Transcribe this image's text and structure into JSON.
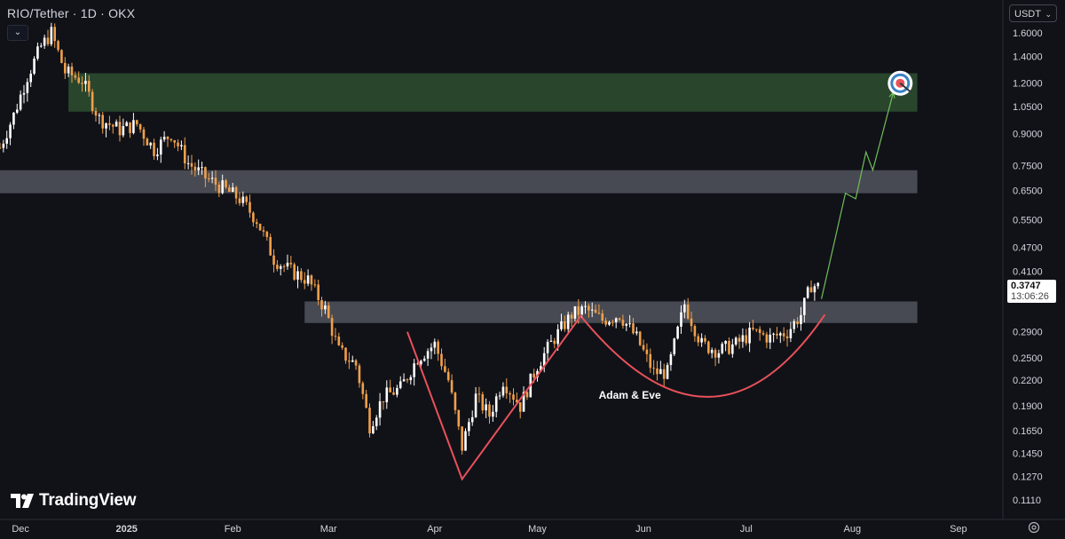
{
  "header": {
    "title": "RIO/Tether · 1D · OKX",
    "collapse_icon": "chevron-down-icon"
  },
  "currency": {
    "label": "USDT"
  },
  "last_price": {
    "price": "0.3747",
    "countdown": "13:06:26"
  },
  "branding": {
    "name": "TradingView"
  },
  "colors": {
    "background": "#111218",
    "up": "#ffffff",
    "down": "#f0a04b",
    "zone_green": "#2b4a2e",
    "zone_gray": "#5a5d66",
    "pattern_line": "#e8515a",
    "projection": "#6fbf5a"
  },
  "chart_data": {
    "type": "candlestick",
    "y_scale": "log",
    "y_ticks": [
      "1.6000",
      "1.4000",
      "1.2000",
      "1.0500",
      "0.9000",
      "0.7500",
      "0.6500",
      "0.5500",
      "0.4700",
      "0.4100",
      "0.2900",
      "0.2500",
      "0.2200",
      "0.1900",
      "0.1650",
      "0.1450",
      "0.1270",
      "0.1110"
    ],
    "x_ticks": [
      {
        "label": "Dec",
        "date": "2024-12-01"
      },
      {
        "label": "2025",
        "date": "2025-01-01"
      },
      {
        "label": "Feb",
        "date": "2025-02-01"
      },
      {
        "label": "Mar",
        "date": "2025-03-01"
      },
      {
        "label": "Apr",
        "date": "2025-04-01"
      },
      {
        "label": "May",
        "date": "2025-05-01"
      },
      {
        "label": "Jun",
        "date": "2025-06-01"
      },
      {
        "label": "Jul",
        "date": "2025-07-01"
      },
      {
        "label": "Aug",
        "date": "2025-08-01"
      },
      {
        "label": "Sep",
        "date": "2025-09-01"
      }
    ],
    "x_range": [
      "2024-11-25",
      "2025-09-14"
    ],
    "zones": [
      {
        "kind": "target",
        "low": 1.02,
        "high": 1.27,
        "from": "2024-12-15",
        "to": "2025-08-20"
      },
      {
        "kind": "resistance",
        "low": 0.64,
        "high": 0.73,
        "from": "2024-11-25",
        "to": "2025-08-20"
      },
      {
        "kind": "support",
        "low": 0.305,
        "high": 0.345,
        "from": "2025-02-22",
        "to": "2025-08-20"
      }
    ],
    "price_path": [
      [
        "2024-11-25",
        0.83
      ],
      [
        "2024-11-29",
        1.0
      ],
      [
        "2024-12-03",
        1.25
      ],
      [
        "2024-12-07",
        1.48
      ],
      [
        "2024-12-10",
        1.6
      ],
      [
        "2024-12-14",
        1.28
      ],
      [
        "2024-12-19",
        1.22
      ],
      [
        "2024-12-24",
        0.98
      ],
      [
        "2024-12-30",
        0.92
      ],
      [
        "2025-01-04",
        0.95
      ],
      [
        "2025-01-09",
        0.82
      ],
      [
        "2025-01-14",
        0.9
      ],
      [
        "2025-01-19",
        0.76
      ],
      [
        "2025-01-24",
        0.7
      ],
      [
        "2025-01-29",
        0.66
      ],
      [
        "2025-02-03",
        0.62
      ],
      [
        "2025-02-08",
        0.55
      ],
      [
        "2025-02-13",
        0.44
      ],
      [
        "2025-02-18",
        0.41
      ],
      [
        "2025-02-23",
        0.39
      ],
      [
        "2025-02-28",
        0.33
      ],
      [
        "2025-03-04",
        0.26
      ],
      [
        "2025-03-09",
        0.24
      ],
      [
        "2025-03-13",
        0.17
      ],
      [
        "2025-03-17",
        0.2
      ],
      [
        "2025-03-22",
        0.21
      ],
      [
        "2025-03-27",
        0.25
      ],
      [
        "2025-04-01",
        0.27
      ],
      [
        "2025-04-05",
        0.22
      ],
      [
        "2025-04-09",
        0.15
      ],
      [
        "2025-04-13",
        0.2
      ],
      [
        "2025-04-17",
        0.18
      ],
      [
        "2025-04-21",
        0.22
      ],
      [
        "2025-04-26",
        0.19
      ],
      [
        "2025-05-01",
        0.24
      ],
      [
        "2025-05-06",
        0.28
      ],
      [
        "2025-05-11",
        0.32
      ],
      [
        "2025-05-15",
        0.33
      ],
      [
        "2025-05-20",
        0.31
      ],
      [
        "2025-05-25",
        0.32
      ],
      [
        "2025-05-30",
        0.28
      ],
      [
        "2025-06-04",
        0.23
      ],
      [
        "2025-06-08",
        0.23
      ],
      [
        "2025-06-13",
        0.34
      ],
      [
        "2025-06-18",
        0.27
      ],
      [
        "2025-06-23",
        0.26
      ],
      [
        "2025-06-28",
        0.27
      ],
      [
        "2025-07-03",
        0.29
      ],
      [
        "2025-07-08",
        0.28
      ],
      [
        "2025-07-13",
        0.29
      ],
      [
        "2025-07-17",
        0.32
      ],
      [
        "2025-07-20",
        0.38
      ],
      [
        "2025-07-22",
        0.3747
      ]
    ],
    "last": {
      "price": 0.3747,
      "label": "0.3747",
      "countdown": "13:06:26"
    },
    "annotations": [
      {
        "type": "polyline",
        "name": "adam",
        "points": [
          [
            "2025-03-24",
            0.29
          ],
          [
            "2025-04-09",
            0.125
          ],
          [
            "2025-05-14",
            0.32
          ]
        ]
      },
      {
        "type": "curve",
        "name": "eve",
        "points": [
          [
            "2025-05-14",
            0.315
          ],
          [
            "2025-06-20",
            0.2
          ],
          [
            "2025-07-24",
            0.32
          ]
        ]
      },
      {
        "type": "arrow",
        "name": "projection",
        "points": [
          [
            "2025-07-23",
            0.35
          ],
          [
            "2025-07-30",
            0.64
          ],
          [
            "2025-08-02",
            0.62
          ],
          [
            "2025-08-05",
            0.81
          ],
          [
            "2025-08-07",
            0.73
          ],
          [
            "2025-08-13",
            1.14
          ]
        ]
      },
      {
        "type": "label",
        "text": "Adam & Eve",
        "at": [
          "2025-05-28",
          0.198
        ]
      },
      {
        "type": "icon",
        "name": "target-icon",
        "at": [
          "2025-08-15",
          1.2
        ]
      }
    ]
  }
}
